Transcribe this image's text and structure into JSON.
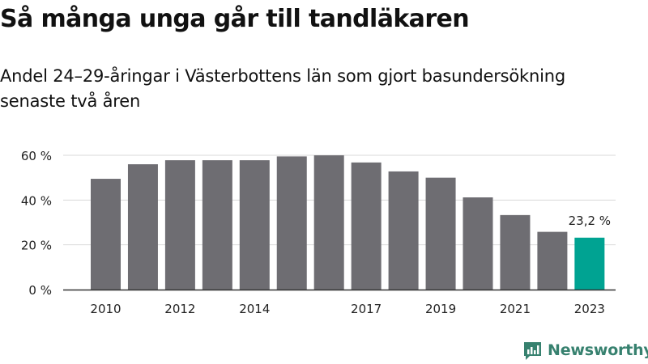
{
  "title": "Så många unga går till tandläkaren",
  "subtitle": "Andel 24–29-åringar i Västerbottens län som gjort basundersökning senaste två åren",
  "brand": {
    "name": "Newsworthy",
    "icon": "newsworthy-logo-icon"
  },
  "colors": {
    "bar": "#6e6d72",
    "highlight": "#00a392",
    "axis": "#333333",
    "grid": "#d9d9d9",
    "brand": "#37816f"
  },
  "chart_data": {
    "type": "bar",
    "categories": [
      "2010",
      "2011",
      "2012",
      "2013",
      "2014",
      "2015",
      "2016",
      "2017",
      "2018",
      "2019",
      "2020",
      "2021",
      "2022",
      "2023"
    ],
    "values": [
      49.5,
      56,
      57.8,
      57.8,
      57.8,
      59.5,
      60,
      56.8,
      52.8,
      50,
      41.2,
      33.3,
      25.8,
      23.2
    ],
    "x_tick_labels": [
      "2010",
      "",
      "2012",
      "",
      "2014",
      "",
      "",
      "2017",
      "",
      "2019",
      "",
      "2021",
      "",
      "2023"
    ],
    "y_ticks": [
      0,
      20,
      40,
      60
    ],
    "y_tick_labels": [
      "0 %",
      "20 %",
      "40 %",
      "60 %"
    ],
    "ylim": [
      0,
      60
    ],
    "highlight_index": 13,
    "annotation": "23,2 %",
    "grid": true
  }
}
